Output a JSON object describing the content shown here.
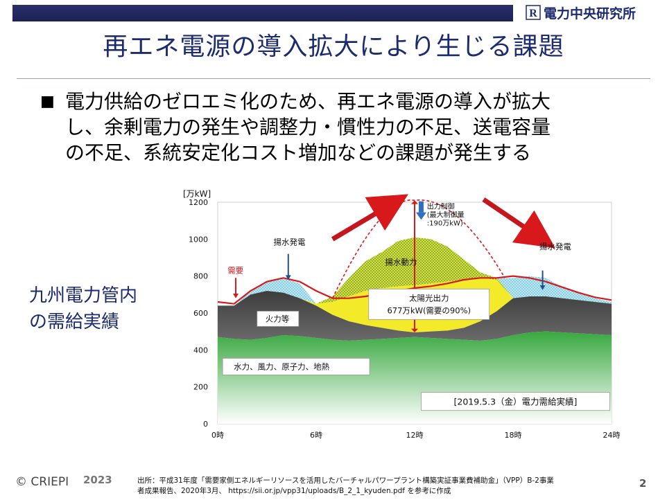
{
  "header": {
    "org_name": "電力中央研究所",
    "org_mark": "R",
    "bar_color": "#1c2156"
  },
  "slide": {
    "title": "再エネ電源の導入拡大により生じる課題",
    "bullet_mark": "■",
    "bullet_lines": [
      "電力供給のゼロエミ化のため、再エネ電源の導入が拡大",
      "し、余剰電力の発生や調整力・慣性力の不足、送電容量",
      "の不足、系統安定化コスト増加などの課題が発生する"
    ],
    "side_label_lines": [
      "九州電力管内",
      "の需給実績"
    ]
  },
  "chart_data": {
    "type": "area",
    "ylabel": "[万kW]",
    "yticks": [
      0,
      200,
      400,
      600,
      800,
      1000,
      1200
    ],
    "xticks": [
      "0時",
      "6時",
      "12時",
      "18時",
      "24時"
    ],
    "ylim": [
      0,
      1200
    ],
    "xlim": [
      0,
      24
    ],
    "x": [
      0,
      1,
      2,
      3,
      4,
      5,
      6,
      7,
      8,
      9,
      10,
      11,
      12,
      13,
      14,
      15,
      16,
      17,
      18,
      19,
      20,
      21,
      22,
      23,
      24
    ],
    "series": [
      {
        "name": "水力、風力、原子力、地熱",
        "values": [
          470,
          460,
          455,
          465,
          480,
          475,
          465,
          455,
          450,
          455,
          460,
          465,
          470,
          465,
          460,
          455,
          450,
          460,
          480,
          495,
          500,
          495,
          490,
          485,
          480
        ],
        "color": "#3fae45"
      },
      {
        "name": "火力等",
        "values": [
          640,
          640,
          700,
          720,
          710,
          680,
          640,
          590,
          555,
          535,
          520,
          505,
          495,
          500,
          505,
          520,
          555,
          610,
          680,
          690,
          690,
          680,
          670,
          660,
          650
        ],
        "color": "#4d4d4d"
      },
      {
        "name": "太陽光出力",
        "values": [
          640,
          640,
          700,
          720,
          710,
          680,
          650,
          660,
          690,
          720,
          735,
          745,
          750,
          760,
          770,
          780,
          790,
          780,
          680,
          690,
          690,
          680,
          670,
          660,
          650
        ],
        "color": "#f2e826"
      },
      {
        "name": "揚水動力",
        "values": [
          640,
          640,
          700,
          720,
          710,
          680,
          650,
          690,
          790,
          880,
          930,
          990,
          1010,
          1000,
          960,
          890,
          820,
          790,
          680,
          690,
          690,
          680,
          670,
          660,
          650
        ],
        "color": "#c8dc4a"
      },
      {
        "name": "揚水発電",
        "values": [
          640,
          640,
          720,
          770,
          790,
          760,
          650,
          690,
          790,
          880,
          930,
          990,
          1010,
          1000,
          960,
          890,
          820,
          790,
          790,
          800,
          790,
          740,
          710,
          680,
          660
        ],
        "color": "#8fd4e6"
      }
    ],
    "demand": {
      "name": "需要",
      "values": [
        660,
        650,
        720,
        770,
        790,
        770,
        720,
        680,
        680,
        690,
        705,
        720,
        735,
        745,
        760,
        780,
        790,
        790,
        800,
        790,
        770,
        740,
        710,
        685,
        670
      ],
      "color": "#d7191c"
    },
    "dashed_line_peak": 1210,
    "annotations": {
      "demand_label": "需要",
      "pumped_gen_label": "揚水発電",
      "pumped_power_label": "揚水動力",
      "thermal_label": "火力等",
      "base_label": "水力、風力、原子力、地熱",
      "curtail_label": [
        "出力制御",
        "(最大制御量",
        ":190万kW)"
      ],
      "solar_label_1": "太陽光出力",
      "solar_label_2": "677万kW(需要の90%)",
      "date_label": "[2019.5.3（金）電力需給実績]"
    }
  },
  "footer": {
    "copyright": "© CRIEPI",
    "year": "2023",
    "source_line1": "出所：平成31年度「需要家側エネルギーリソースを活用したバーチャルパワープラント構築実証事業費補助金」（VPP）B-2事業",
    "source_line2": "者成果報告、2020年3月、 https://sii.or.jp/vpp31/uploads/B_2_1_kyuden.pdf を参考に作成",
    "page_number": "2"
  }
}
